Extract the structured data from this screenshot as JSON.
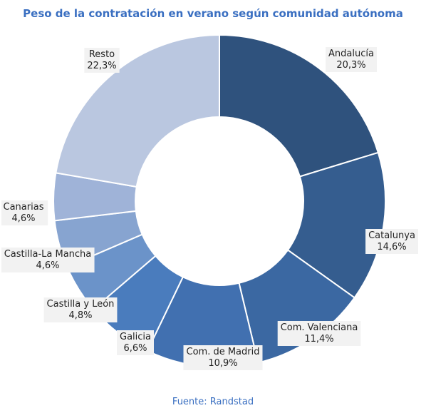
{
  "chart_data": {
    "type": "pie",
    "title": "Peso de la contratación en verano según comunidad autónoma",
    "source": "Fuente: Randstad",
    "slices": [
      {
        "label": "Andalucía",
        "value": 20.3,
        "value_text": "20,3%",
        "color": "#2f527d"
      },
      {
        "label": "Catalunya",
        "value": 14.6,
        "value_text": "14,6%",
        "color": "#355d8f"
      },
      {
        "label": "Com. Valenciana",
        "value": 11.4,
        "value_text": "11,4%",
        "color": "#3b68a2"
      },
      {
        "label": "Com. de Madrid",
        "value": 10.9,
        "value_text": "10,9%",
        "color": "#4170b0"
      },
      {
        "label": "Galicia",
        "value": 6.6,
        "value_text": "6,6%",
        "color": "#4a7cbd"
      },
      {
        "label": "Castilla y León",
        "value": 4.8,
        "value_text": "4,8%",
        "color": "#6b93c9"
      },
      {
        "label": "Castilla-La Mancha",
        "value": 4.6,
        "value_text": "4,6%",
        "color": "#87a4d0"
      },
      {
        "label": "Canarias",
        "value": 4.6,
        "value_text": "4,6%",
        "color": "#9fb3d8"
      },
      {
        "label": "Resto",
        "value": 22.3,
        "value_text": "22,3%",
        "color": "#bac7e0"
      }
    ]
  }
}
